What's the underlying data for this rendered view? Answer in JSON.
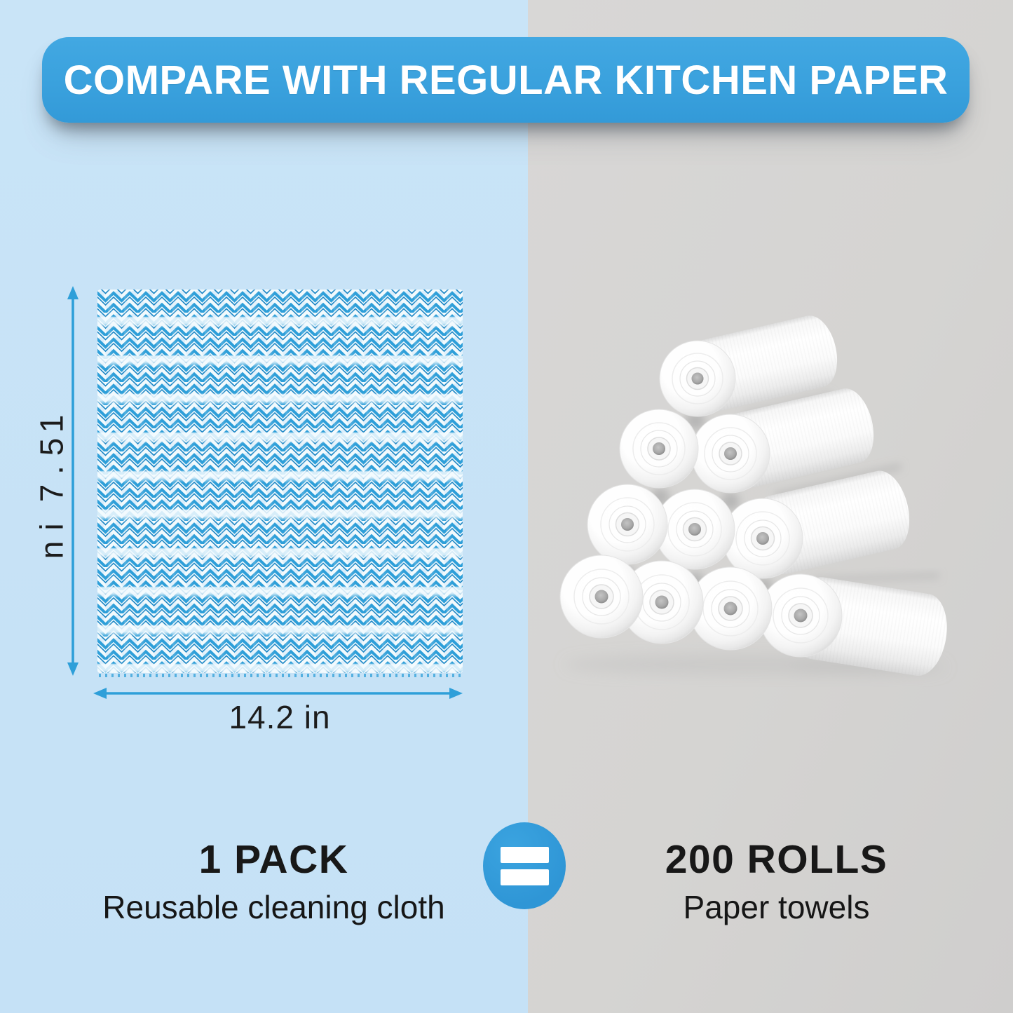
{
  "banner": {
    "title": "COMPARE WITH REGULAR KITCHEN PAPER"
  },
  "cloth": {
    "height_label": "15.7 in",
    "width_label": "14.2 in"
  },
  "comparison": {
    "left": {
      "headline": "1 PACK",
      "subline": "Reusable cleaning cloth"
    },
    "equals_symbol": "=",
    "right": {
      "headline": "200 ROLLS",
      "subline": "Paper towels"
    },
    "paper_roll_count": 10
  },
  "colors": {
    "panel_left": "#c9e4f7",
    "panel_right": "#d5d4d2",
    "banner_blue": "#3aa1dd",
    "accent_blue": "#2e9fd9",
    "cloth_blue": "#2e9fd9",
    "cloth_blue_dark": "#1b86c5",
    "badge_blue": "#2f96d6",
    "text_dark": "#1b1b1b"
  }
}
